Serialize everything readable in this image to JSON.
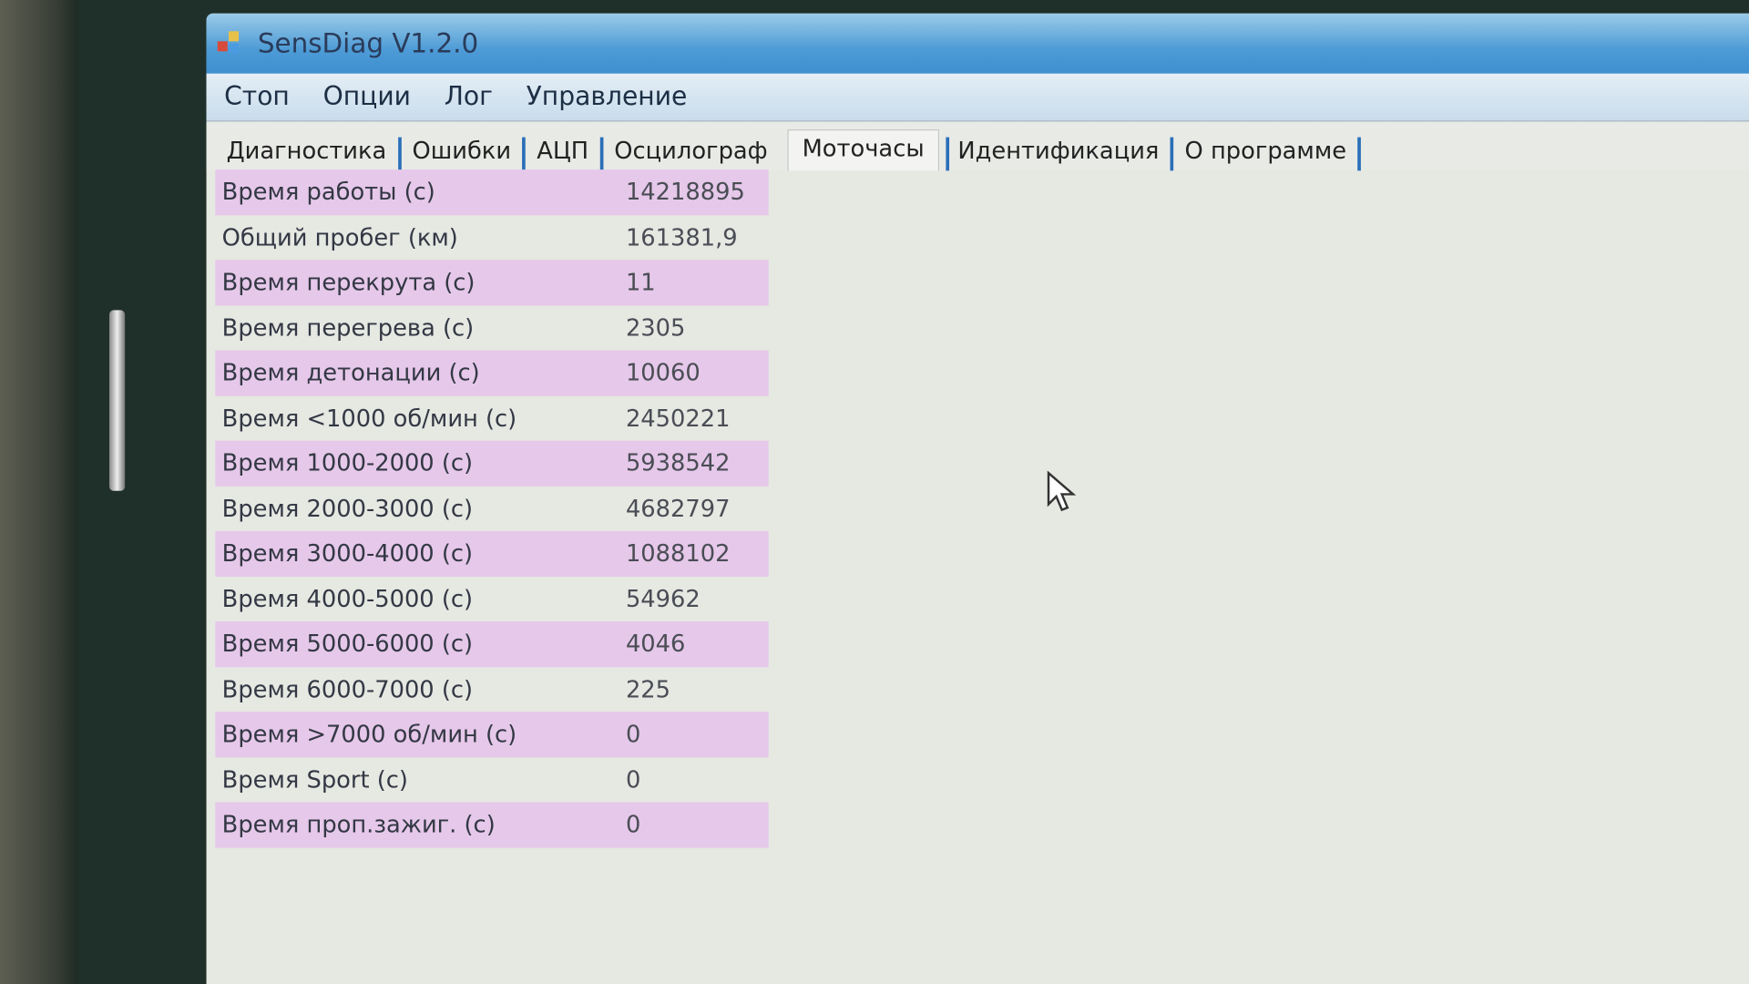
{
  "window": {
    "title": "SensDiag V1.2.0"
  },
  "menu": [
    "Стоп",
    "Опции",
    "Лог",
    "Управление"
  ],
  "tabs": [
    "Диагностика",
    "Ошибки",
    "АЦП",
    "Осцилограф",
    "Моточасы",
    "Идентификация",
    "О программе"
  ],
  "active_tab": "Моточасы",
  "colors": {
    "row_highlight": "#e6c8ea",
    "titlebar": "#4d9bd6",
    "tab_separator": "#2a6fb8"
  },
  "rows": [
    {
      "label": "Время работы (с)",
      "value": "14218895"
    },
    {
      "label": "Общий пробег (км)",
      "value": "161381,9"
    },
    {
      "label": "Время перекрута (с)",
      "value": "11"
    },
    {
      "label": "Время перегрева (с)",
      "value": "2305"
    },
    {
      "label": "Время детонации (с)",
      "value": "10060"
    },
    {
      "label": "Время <1000 об/мин (с)",
      "value": "2450221"
    },
    {
      "label": "Время 1000-2000 (с)",
      "value": "5938542"
    },
    {
      "label": "Время 2000-3000 (с)",
      "value": "4682797"
    },
    {
      "label": "Время 3000-4000 (с)",
      "value": "1088102"
    },
    {
      "label": "Время 4000-5000 (с)",
      "value": "54962"
    },
    {
      "label": "Время 5000-6000 (с)",
      "value": "4046"
    },
    {
      "label": "Время 6000-7000 (с)",
      "value": "225"
    },
    {
      "label": "Время >7000 об/мин (с)",
      "value": "0"
    },
    {
      "label": "Время Sport (с)",
      "value": "0"
    },
    {
      "label": "Время проп.зажиг. (с)",
      "value": "0"
    }
  ]
}
